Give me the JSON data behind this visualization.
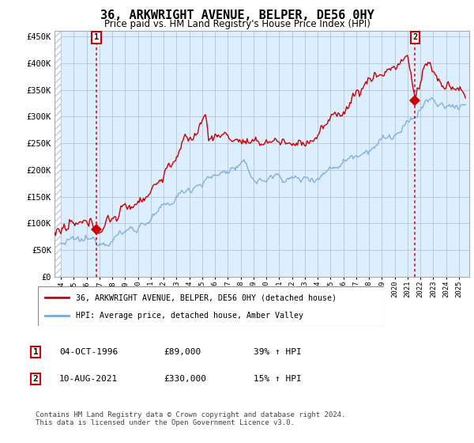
{
  "title": "36, ARKWRIGHT AVENUE, BELPER, DE56 0HY",
  "subtitle": "Price paid vs. HM Land Registry's House Price Index (HPI)",
  "ylabel_ticks": [
    "£0",
    "£50K",
    "£100K",
    "£150K",
    "£200K",
    "£250K",
    "£300K",
    "£350K",
    "£400K",
    "£450K"
  ],
  "ytick_values": [
    0,
    50000,
    100000,
    150000,
    200000,
    250000,
    300000,
    350000,
    400000,
    450000
  ],
  "ylim": [
    0,
    460000
  ],
  "xlim_start": 1993.5,
  "xlim_end": 2025.8,
  "legend_line1": "36, ARKWRIGHT AVENUE, BELPER, DE56 0HY (detached house)",
  "legend_line2": "HPI: Average price, detached house, Amber Valley",
  "label1_date": "04-OCT-1996",
  "label1_price": "£89,000",
  "label1_hpi": "39% ↑ HPI",
  "label2_date": "10-AUG-2021",
  "label2_price": "£330,000",
  "label2_hpi": "15% ↑ HPI",
  "footer": "Contains HM Land Registry data © Crown copyright and database right 2024.\nThis data is licensed under the Open Government Licence v3.0.",
  "sale1_year": 1996.75,
  "sale1_price": 89000,
  "sale2_year": 2021.58,
  "sale2_price": 330000,
  "red_color": "#cc0000",
  "blue_color": "#7aaadd",
  "bg_color": "#ddeeff",
  "hatch_color": "#bbccdd",
  "grid_color": "#aabbcc"
}
